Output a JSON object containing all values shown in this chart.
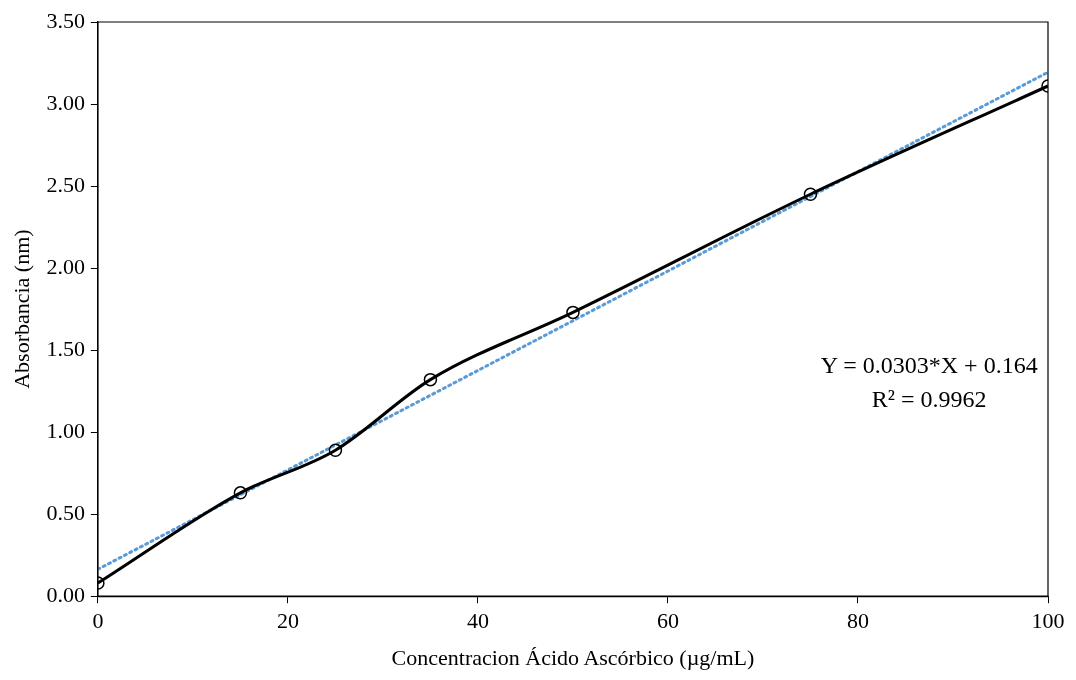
{
  "chart_data": {
    "type": "line",
    "xlabel": "Concentracion Ácido Ascórbico (µg/mL)",
    "ylabel": "Absorbancia (nm)",
    "xlim": [
      0,
      100
    ],
    "xticks": [
      0,
      20,
      40,
      60,
      80,
      100
    ],
    "ylim": [
      0,
      3.5
    ],
    "yticks": [
      {
        "value": 0,
        "label": "0.00"
      },
      {
        "value": 0.5,
        "label": "0.50"
      },
      {
        "value": 1,
        "label": "1.00"
      },
      {
        "value": 1.5,
        "label": "1.50"
      },
      {
        "value": 2,
        "label": "2.00"
      },
      {
        "value": 2.5,
        "label": "2.50"
      },
      {
        "value": 3,
        "label": "3.00"
      },
      {
        "value": 3.5,
        "label": "3.50"
      }
    ],
    "series": [
      {
        "type": "line",
        "color": "#000000",
        "x": [
          0,
          15,
          25,
          35,
          50,
          75,
          100
        ],
        "values": [
          0.08,
          0.63,
          0.89,
          1.32,
          1.73,
          2.45,
          3.11
        ],
        "marker": "circle",
        "line_style": "solid"
      },
      {
        "type": "line",
        "color": "#5b9bd5",
        "x": [
          0,
          100
        ],
        "values": [
          0.164,
          3.194
        ],
        "marker": "none",
        "line_style": "dotted"
      }
    ],
    "annotations": [
      "Y = 0.0303*X + 0.164",
      "R² = 0.9962"
    ]
  }
}
